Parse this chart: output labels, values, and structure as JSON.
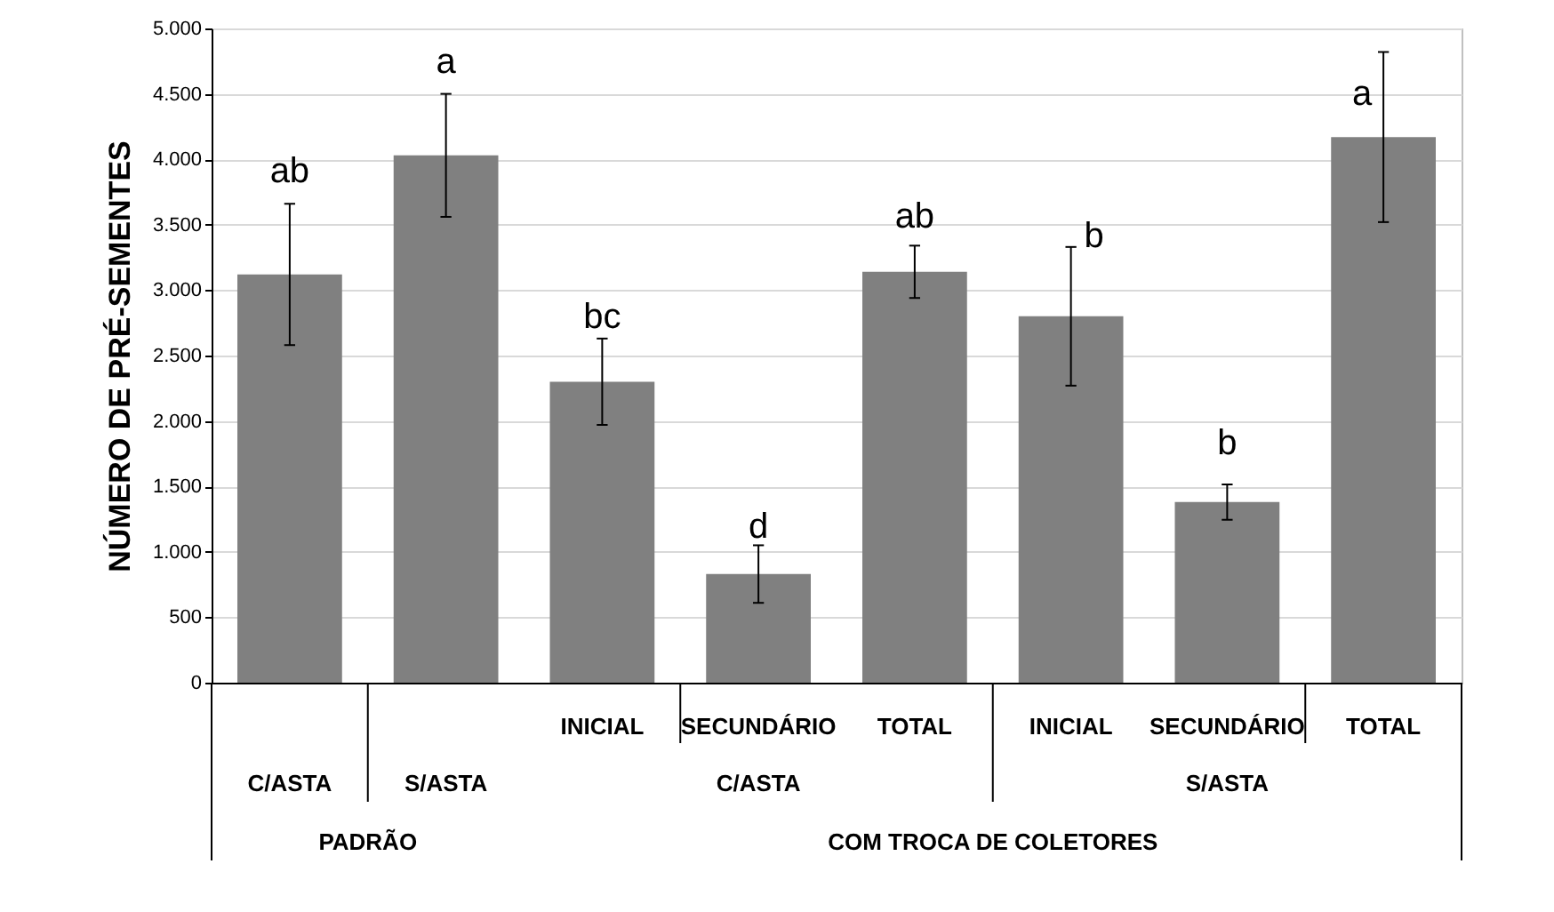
{
  "chart_data": {
    "type": "bar",
    "ylabel": "NÚMERO DE PRÉ-SEMENTES",
    "categories": [
      null,
      null,
      "INICIAL",
      "SECUNDÁRIO",
      "TOTAL",
      "INICIAL",
      "SECUNDÁRIO",
      "TOTAL"
    ],
    "values": [
      3120,
      4030,
      2300,
      830,
      3140,
      2800,
      1380,
      4170
    ],
    "color": "#808080",
    "errors": [
      540,
      470,
      330,
      220,
      200,
      530,
      135,
      650
    ],
    "value_labels": [
      "ab",
      "a",
      "bc",
      "d",
      "ab",
      "b",
      "b",
      "a"
    ],
    "ylim": [
      0,
      5000
    ],
    "yticks": [
      0,
      500,
      {
        "value": 1000,
        "label": "1.000"
      },
      {
        "value": 1500,
        "label": "1.500"
      },
      {
        "value": 2000,
        "label": "2.000"
      },
      {
        "value": 2500,
        "label": "2.500"
      },
      {
        "value": 3000,
        "label": "3.000"
      },
      {
        "value": 3500,
        "label": "3.500"
      },
      {
        "value": 4000,
        "label": "4.000"
      },
      {
        "value": 4500,
        "label": "4.500"
      },
      {
        "value": 5000,
        "label": "5.000"
      }
    ],
    "grid": "y",
    "annotations": [
      "C/ASTA",
      "S/ASTA",
      "C/ASTA",
      "S/ASTA",
      "PADRÃO",
      "COM TROCA DE COLETORES"
    ]
  }
}
